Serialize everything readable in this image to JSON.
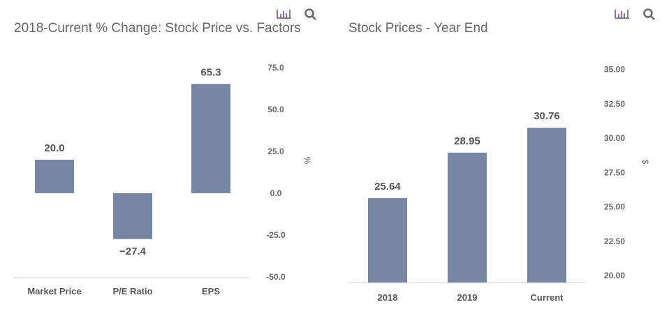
{
  "colors": {
    "bar": "#7787a3",
    "icon": "#8e6f9e"
  },
  "icons": [
    "bar-chart-icon",
    "search-icon"
  ],
  "chart_data": [
    {
      "type": "bar",
      "title": "2018-Current % Change: Stock Price vs. Factors",
      "categories": [
        "Market Price",
        "P/E Ratio",
        "EPS"
      ],
      "values": [
        20.0,
        -27.4,
        65.3
      ],
      "labels": [
        "20.0",
        "−27.4",
        "65.3"
      ],
      "ylabel": "%",
      "ylim": [
        -50,
        75
      ],
      "yticks": [
        "75.0",
        "50.0",
        "25.0",
        "0.0",
        "-25.0",
        "-50.0"
      ],
      "ytick_values": [
        75,
        50,
        25,
        0,
        -25,
        -50
      ],
      "axis_side": "right",
      "grid": false
    },
    {
      "type": "bar",
      "title": "Stock Prices - Year End",
      "categories": [
        "2018",
        "2019",
        "Current"
      ],
      "values": [
        25.64,
        28.95,
        30.76
      ],
      "labels": [
        "25.64",
        "28.95",
        "30.76"
      ],
      "ylabel": "$",
      "ylim": [
        19.5,
        35
      ],
      "yticks": [
        "35.00",
        "32.50",
        "30.00",
        "27.50",
        "25.00",
        "22.50",
        "20.00"
      ],
      "ytick_values": [
        35,
        32.5,
        30,
        27.5,
        25,
        22.5,
        20
      ],
      "axis_side": "right",
      "grid": false
    }
  ]
}
